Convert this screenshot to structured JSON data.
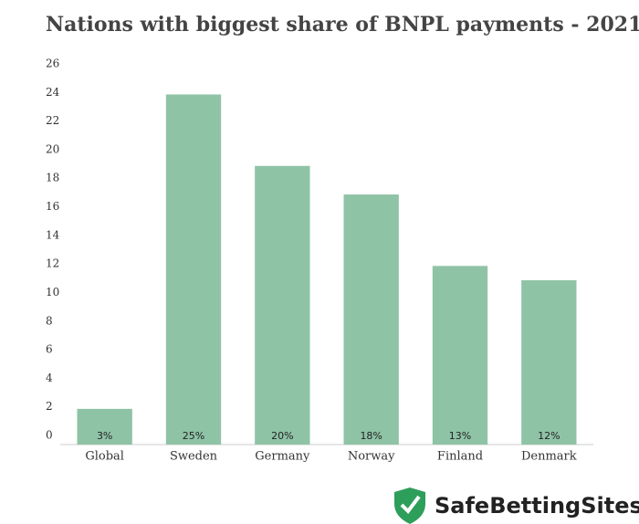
{
  "chart_data": {
    "type": "bar",
    "title": "Nations with biggest share of BNPL payments - 2021",
    "categories": [
      "Global",
      "Sweden",
      "Germany",
      "Norway",
      "Finland",
      "Denmark"
    ],
    "values": [
      2.5,
      24.5,
      19.5,
      17.5,
      12.5,
      11.5
    ],
    "value_labels": [
      "3%",
      "25%",
      "20%",
      "18%",
      "13%",
      "12%"
    ],
    "color": "#8fc3a6",
    "ylim": [
      0,
      26
    ],
    "yticks": [
      0,
      2,
      4,
      6,
      8,
      10,
      12,
      14,
      16,
      18,
      20,
      22,
      24,
      26
    ],
    "grid": false
  },
  "brand": "SafeBettingSites"
}
